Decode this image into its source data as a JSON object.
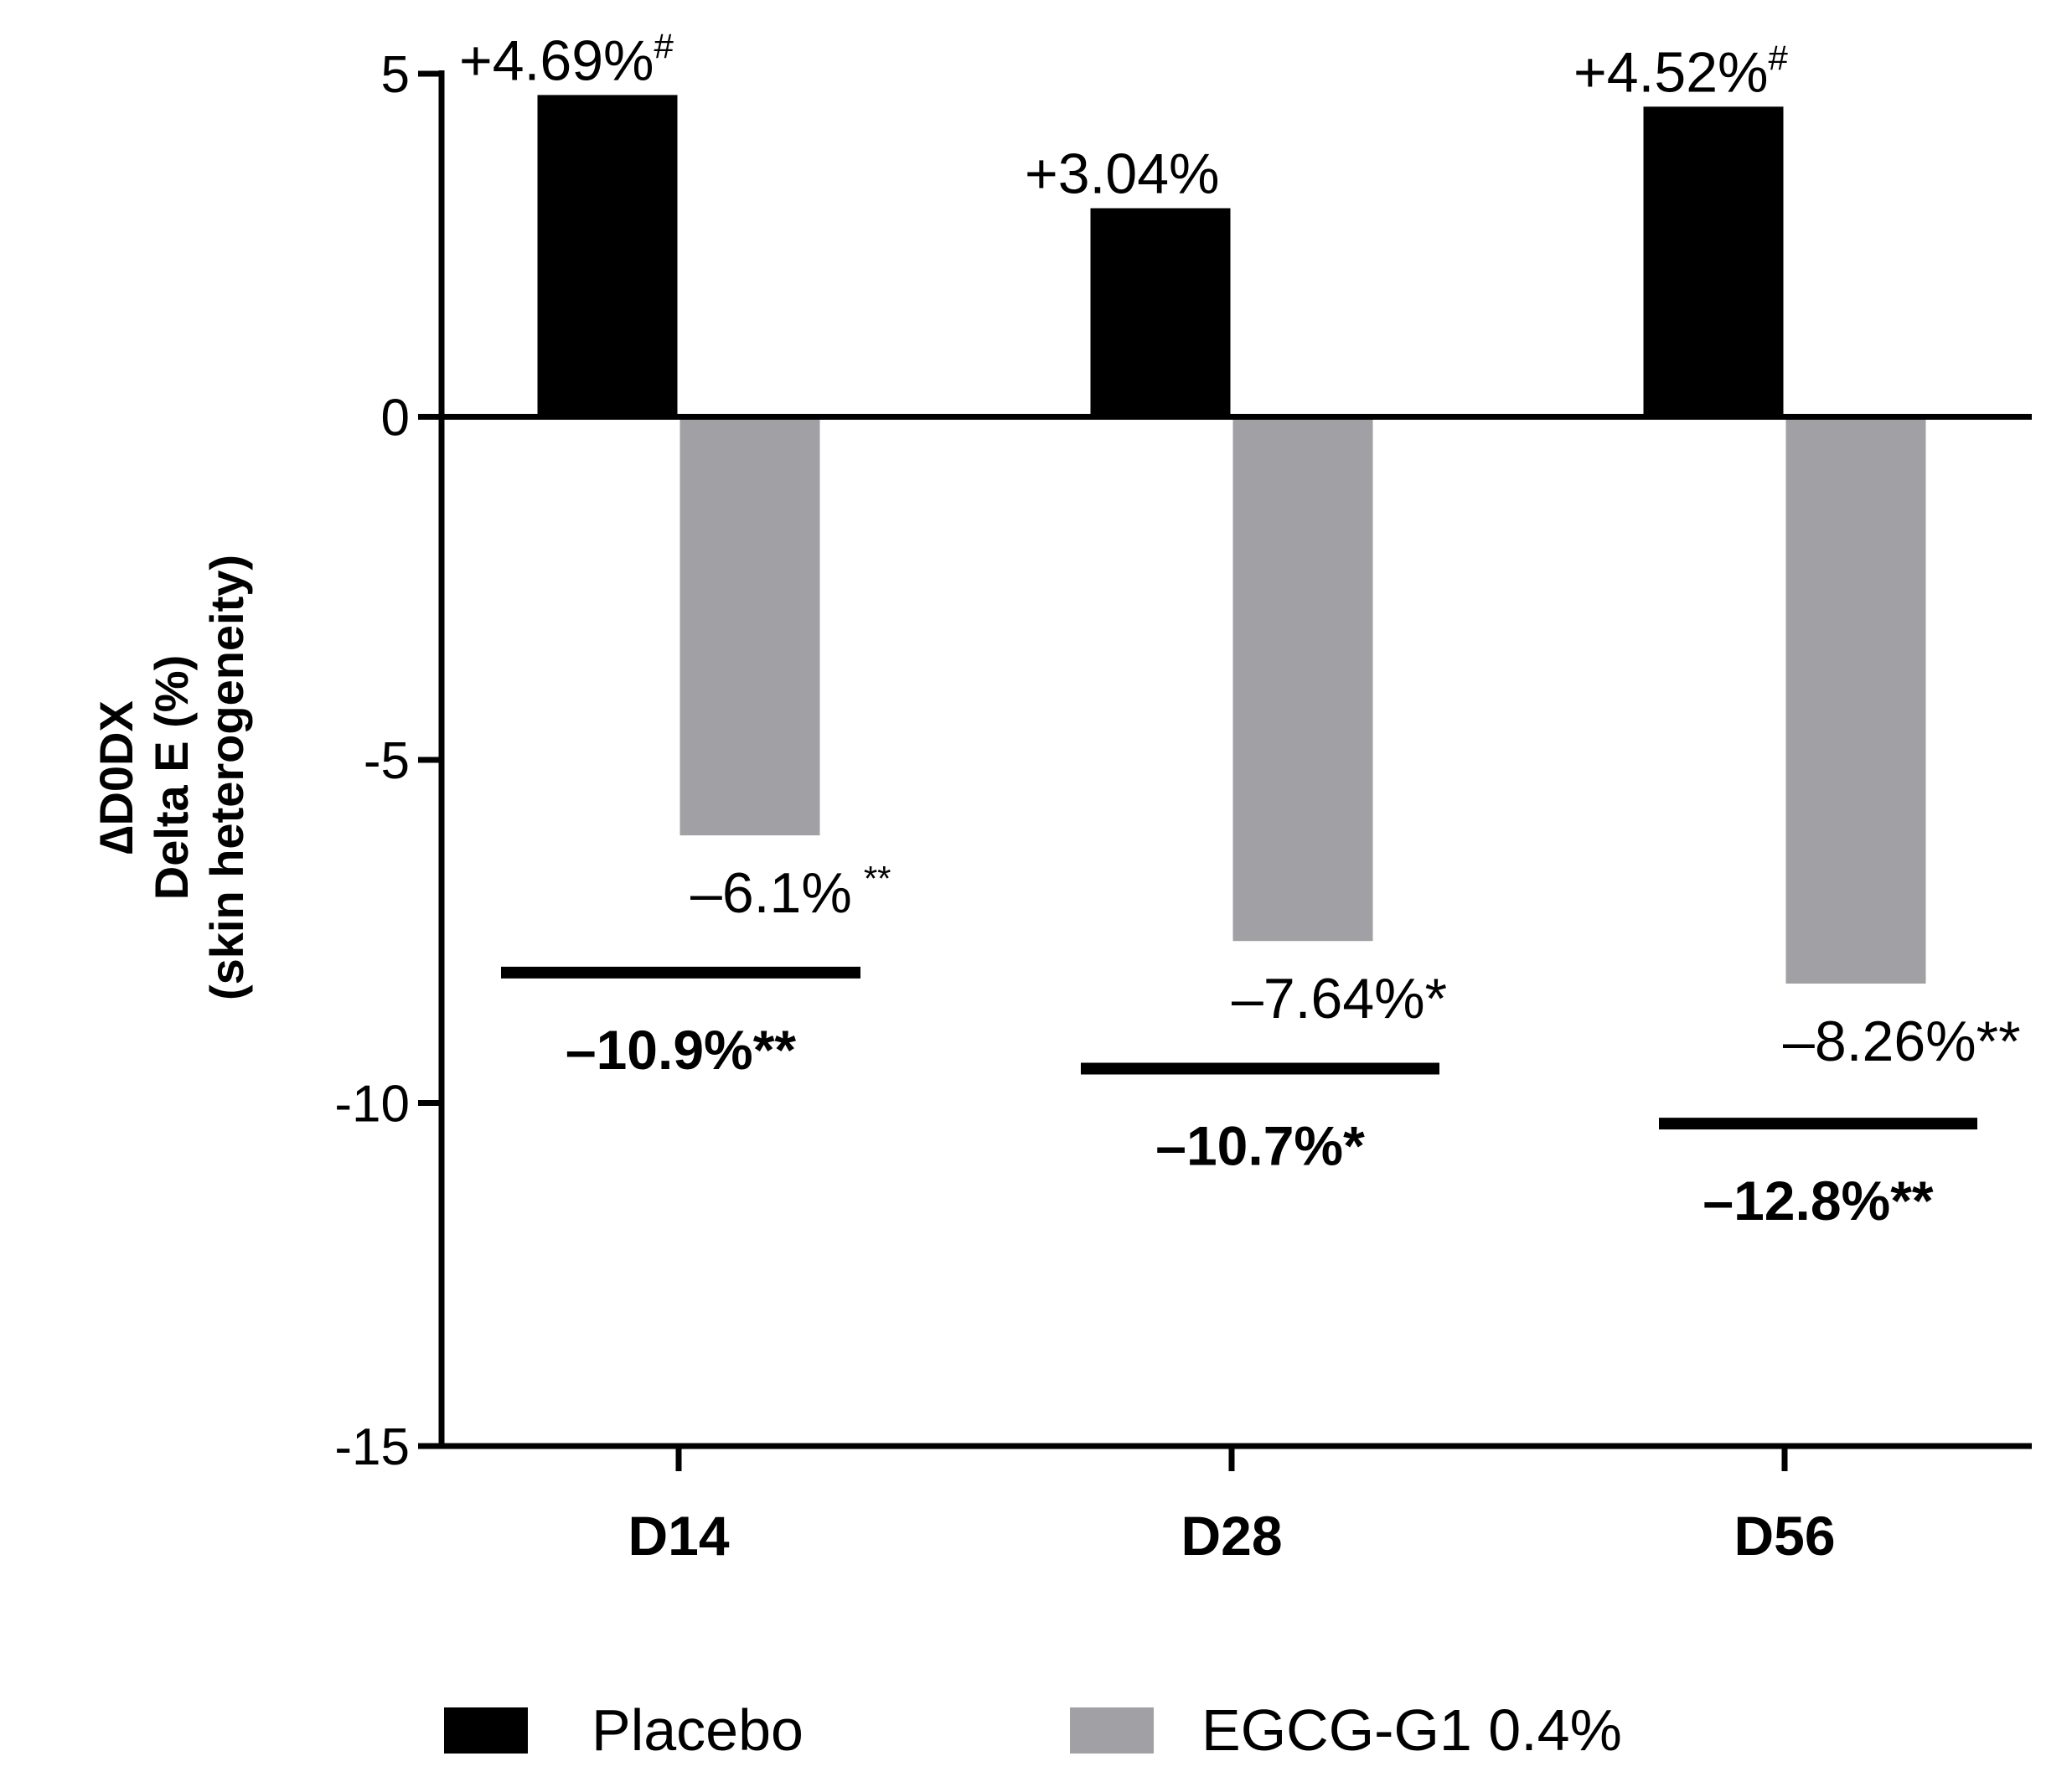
{
  "chart_data": {
    "type": "bar",
    "title": "",
    "xlabel": "",
    "ylabel_lines": [
      "∆D0DX",
      "Delta E (%)",
      "(skin heterogeneity)"
    ],
    "categories": [
      "D14",
      "D28",
      "D56"
    ],
    "ylim": [
      -15,
      5
    ],
    "yticks": [
      5,
      0,
      -5,
      -10,
      -15
    ],
    "ytick_labels": [
      "5",
      "0",
      "-5",
      "-10",
      "-15"
    ],
    "grid": false,
    "legend_position": "bottom",
    "series": [
      {
        "name": "Placebo",
        "color": "#000000",
        "values": [
          4.69,
          3.04,
          4.52
        ],
        "labels": [
          {
            "main": "+4.69%",
            "sup": "#"
          },
          {
            "main": "+3.04%",
            "sup": ""
          },
          {
            "main": "+4.52%",
            "sup": "#"
          }
        ]
      },
      {
        "name": "EGCG-G1 0.4%",
        "color": "#a1a1a5",
        "values": [
          -6.1,
          -7.64,
          -8.26
        ],
        "labels": [
          {
            "main": "–6.1%",
            "sup": "**"
          },
          {
            "main": "–7.64%*",
            "sup": ""
          },
          {
            "main": "–8.26%**",
            "sup": ""
          }
        ]
      }
    ],
    "annotations": [
      {
        "category": "D14",
        "level": -8.1,
        "text": "–10.9%**"
      },
      {
        "category": "D28",
        "level": -9.5,
        "text": "–10.7%*"
      },
      {
        "category": "D56",
        "level": -10.3,
        "text": "–12.8%**"
      }
    ]
  }
}
